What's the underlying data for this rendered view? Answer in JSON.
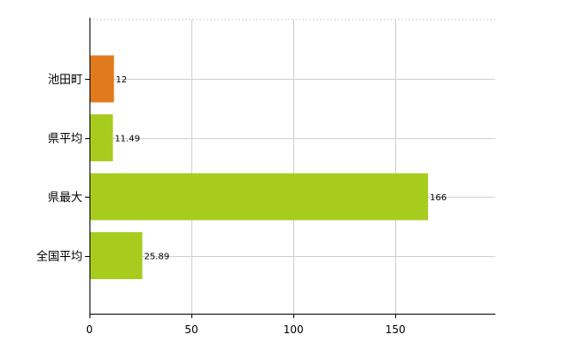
{
  "chart_data": {
    "type": "bar",
    "orientation": "horizontal",
    "categories": [
      "池田町",
      "県平均",
      "県最大",
      "全国平均"
    ],
    "values": [
      12,
      11.49,
      166,
      25.89
    ],
    "value_labels": [
      "12",
      "11.49",
      "166",
      "25.89"
    ],
    "bar_colors": [
      "#e07a1f",
      "#a8cc1e",
      "#a8cc1e",
      "#a8cc1e"
    ],
    "xlim": [
      0,
      199
    ],
    "xticks": [
      0,
      50,
      100,
      150
    ],
    "xtick_labels": [
      "0",
      "50",
      "100",
      "150"
    ],
    "grid": true,
    "grid_color": "#d0d0d0",
    "legend": "none",
    "title": "",
    "xlabel": "",
    "ylabel": ""
  }
}
